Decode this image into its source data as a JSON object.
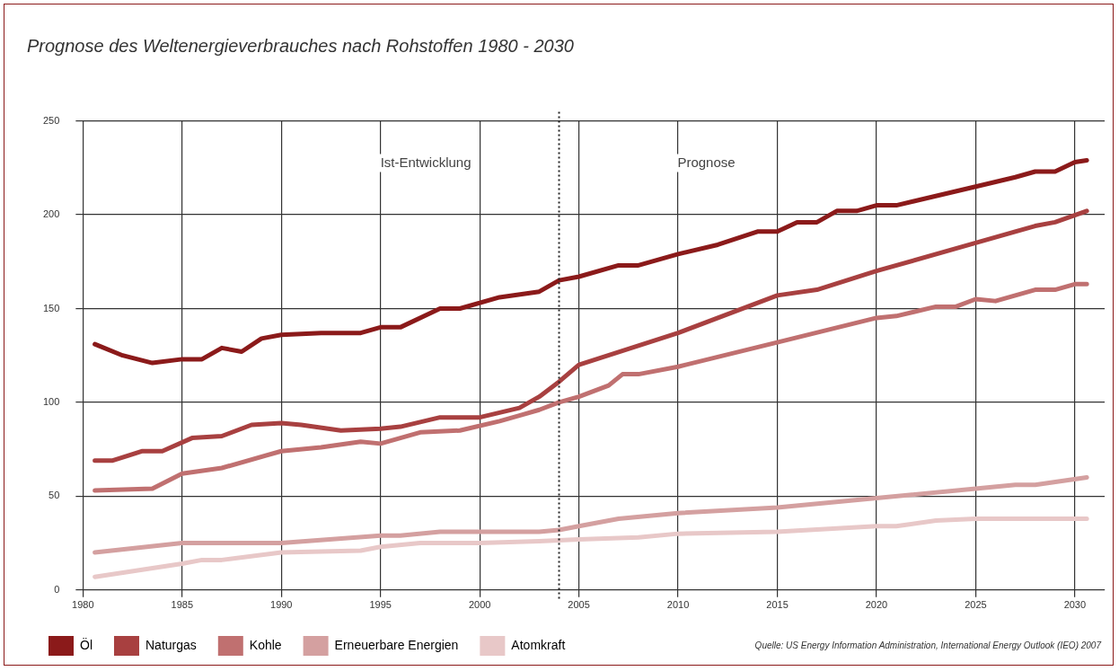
{
  "chart_data": {
    "type": "line",
    "title": "Prognose des Weltenergieverbrauches nach Rohstoffen 1980 - 2030",
    "xlim": [
      1980,
      2031.5
    ],
    "xticks": [
      1980,
      1985,
      1990,
      1995,
      2000,
      2005,
      2010,
      2015,
      2020,
      2025,
      2030
    ],
    "ylim": [
      0,
      250
    ],
    "yticks": [
      0,
      50,
      100,
      150,
      200,
      250
    ],
    "grid": true,
    "legend": "bottom",
    "marker": "none",
    "line_style": "solid",
    "ref_lines": [
      {
        "axis": "x",
        "value": 2004,
        "line_style": "dotted",
        "color": "#222222"
      }
    ],
    "annotations": [
      "Ist-Entwicklung",
      "Prognose",
      "Quelle: US Energy Information Administration, International Energy Outlook (IEO) 2007"
    ],
    "series": [
      {
        "name": "Öl",
        "color": "#8b1a1a",
        "x": [
          1980.6,
          1982,
          1983.5,
          1985,
          1986,
          1987,
          1988,
          1989,
          1990,
          1992,
          1994,
          1995,
          1996,
          1998,
          1999,
          2001,
          2003,
          2004,
          2005,
          2007,
          2008,
          2010,
          2012,
          2014,
          2015,
          2016,
          2017,
          2018,
          2019,
          2020,
          2021,
          2025,
          2027,
          2028,
          2029,
          2030,
          2030.6
        ],
        "values": [
          131,
          125,
          121,
          123,
          123,
          129,
          127,
          134,
          136,
          137,
          137,
          140,
          140,
          150,
          150,
          156,
          159,
          165,
          167,
          173,
          173,
          179,
          184,
          191,
          191,
          196,
          196,
          202,
          202,
          205,
          205,
          215,
          220,
          223,
          223,
          228,
          229
        ]
      },
      {
        "name": "Naturgas",
        "color": "#a84040",
        "x": [
          1980.6,
          1981.5,
          1983,
          1984,
          1985.5,
          1987,
          1988.5,
          1990,
          1991,
          1993,
          1995,
          1996,
          1998,
          2000,
          2002,
          2003,
          2004,
          2005,
          2010,
          2015,
          2017,
          2020,
          2025,
          2028,
          2029,
          2030.6
        ],
        "values": [
          69,
          69,
          74,
          74,
          81,
          82,
          88,
          89,
          88,
          85,
          86,
          87,
          92,
          92,
          97,
          103,
          111,
          120,
          137,
          157,
          160,
          170,
          185,
          194,
          196,
          202
        ]
      },
      {
        "name": "Kohle",
        "color": "#c07070",
        "x": [
          1980.6,
          1983.5,
          1985,
          1987,
          1990,
          1992,
          1994,
          1995,
          1997,
          1999,
          2001,
          2002,
          2003,
          2004,
          2005,
          2006.5,
          2007.2,
          2008,
          2010,
          2015,
          2020,
          2021,
          2023,
          2024,
          2025,
          2026,
          2028,
          2029,
          2030,
          2030.6
        ],
        "values": [
          53,
          54,
          62,
          65,
          74,
          76,
          79,
          78,
          84,
          85,
          90,
          93,
          96,
          100,
          103,
          109,
          115,
          115,
          119,
          132,
          145,
          146,
          151,
          151,
          155,
          154,
          160,
          160,
          163,
          163
        ]
      },
      {
        "name": "Erneuerbare Energien",
        "color": "#d4a0a0",
        "x": [
          1980.6,
          1985,
          1990,
          1995,
          1996,
          1998,
          2000,
          2003,
          2004,
          2005,
          2007,
          2010,
          2015,
          2020,
          2025,
          2027,
          2028,
          2030.6
        ],
        "values": [
          20,
          25,
          25,
          29,
          29,
          31,
          31,
          31,
          32,
          34,
          38,
          41,
          44,
          49,
          54,
          56,
          56,
          60
        ]
      },
      {
        "name": "Atomkraft",
        "color": "#e8c8c8",
        "x": [
          1980.6,
          1985,
          1986,
          1987,
          1990,
          1994,
          1995,
          1997,
          2000,
          2003,
          2005,
          2008,
          2010,
          2015,
          2020,
          2021,
          2023,
          2025,
          2030.6
        ],
        "values": [
          7,
          14,
          16,
          16,
          20,
          21,
          23,
          25,
          25,
          26,
          27,
          28,
          30,
          31,
          34,
          34,
          37,
          38,
          38
        ]
      }
    ]
  }
}
